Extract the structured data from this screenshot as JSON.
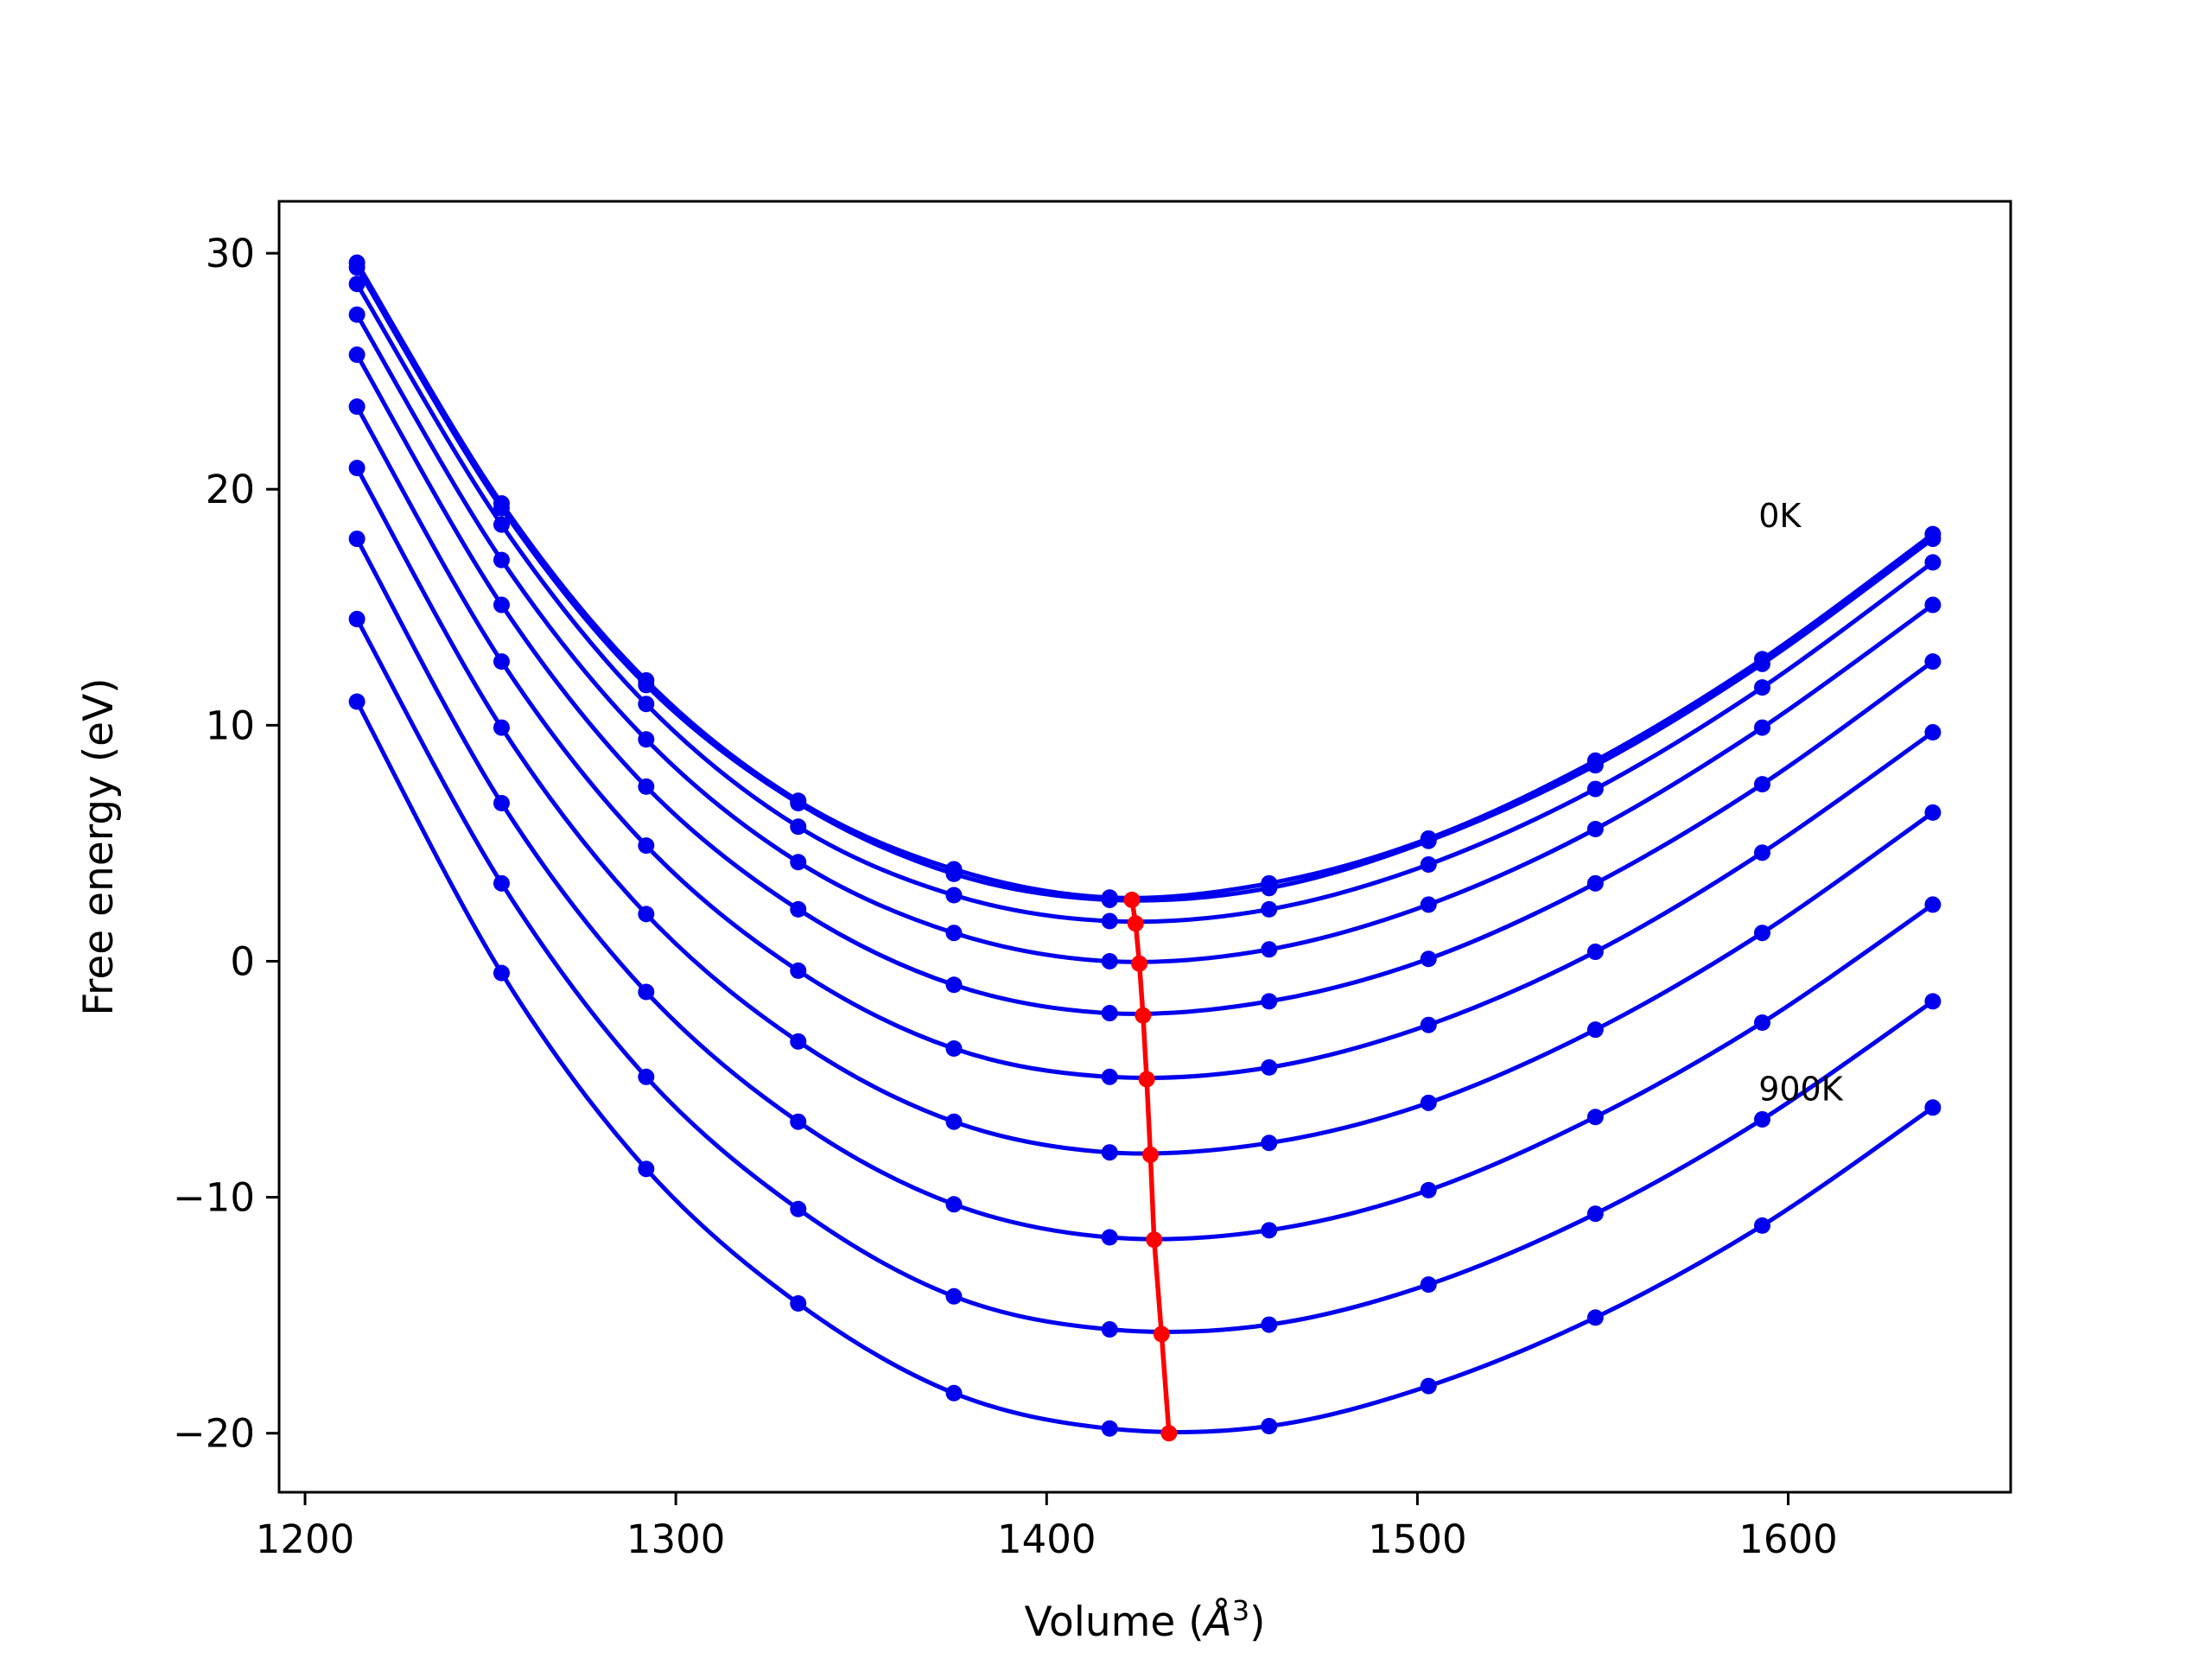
{
  "chart_data": {
    "type": "line",
    "title": "",
    "xlabel": "Volume (",
    "xlabel_unit_symbol": "Å",
    "xlabel_unit_sup": "3",
    "xlabel_close": ")",
    "ylabel": "Free energy (eV)",
    "xlim": [
      1193,
      1660
    ],
    "ylim": [
      -22.5,
      32.2
    ],
    "x_ticks": [
      1200,
      1300,
      1400,
      1500,
      1600
    ],
    "y_ticks": [
      -20,
      -10,
      0,
      10,
      20,
      30
    ],
    "x_tick_labels": [
      "1200",
      "1300",
      "1400",
      "1500",
      "1600"
    ],
    "y_tick_labels": [
      "−20",
      "−10",
      "0",
      "10",
      "20",
      "30"
    ],
    "grid": false,
    "colors": {
      "curves": "#0000ee",
      "minima": "#ff0000",
      "frame": "#000000"
    },
    "annotations": [
      {
        "text": "0K",
        "x": 1592,
        "y": 18.4
      },
      {
        "text": "900K",
        "x": 1592,
        "y": -5.9
      }
    ],
    "volumes": [
      1214,
      1253,
      1292,
      1333,
      1375,
      1417,
      1460,
      1503,
      1548,
      1593,
      1639
    ],
    "series": [
      {
        "values": [
          29.6,
          19.4,
          11.9,
          6.8,
          3.9,
          2.7,
          3.3,
          5.2,
          8.5,
          12.8,
          18.1
        ]
      },
      {
        "values": [
          29.4,
          19.2,
          11.7,
          6.7,
          3.7,
          2.6,
          3.1,
          5.1,
          8.3,
          12.6,
          17.9
        ]
      },
      {
        "values": [
          28.7,
          18.5,
          10.9,
          5.7,
          2.8,
          1.7,
          2.2,
          4.1,
          7.3,
          11.6,
          16.9
        ]
      },
      {
        "values": [
          27.4,
          17.0,
          9.4,
          4.2,
          1.2,
          0.0,
          0.5,
          2.4,
          5.6,
          9.9,
          15.1
        ]
      },
      {
        "values": [
          25.7,
          15.1,
          7.4,
          2.2,
          -1.0,
          -2.2,
          -1.7,
          0.1,
          3.3,
          7.5,
          12.7
        ]
      },
      {
        "values": [
          23.5,
          12.7,
          4.9,
          -0.4,
          -3.7,
          -4.9,
          -4.5,
          -2.7,
          0.4,
          4.6,
          9.7
        ]
      },
      {
        "values": [
          20.9,
          9.9,
          2.0,
          -3.4,
          -6.8,
          -8.1,
          -7.7,
          -6.0,
          -2.9,
          1.2,
          6.3
        ]
      },
      {
        "values": [
          17.9,
          6.7,
          -1.3,
          -6.8,
          -10.3,
          -11.7,
          -11.4,
          -9.7,
          -6.6,
          -2.6,
          2.4
        ]
      },
      {
        "values": [
          14.5,
          3.3,
          -4.9,
          -10.5,
          -14.2,
          -15.6,
          -15.4,
          -13.7,
          -10.7,
          -6.7,
          -1.7
        ]
      },
      {
        "values": [
          11.0,
          -0.5,
          -8.8,
          -14.5,
          -18.3,
          -19.8,
          -19.7,
          -18.0,
          -15.1,
          -11.2,
          -6.2
        ]
      }
    ],
    "minima": {
      "x": [
        1423,
        1424,
        1425,
        1426,
        1427,
        1428,
        1429,
        1431,
        1433
      ],
      "y": [
        2.6,
        1.6,
        -0.1,
        -2.3,
        -5.0,
        -8.2,
        -11.8,
        -15.8,
        -20.0
      ]
    }
  }
}
